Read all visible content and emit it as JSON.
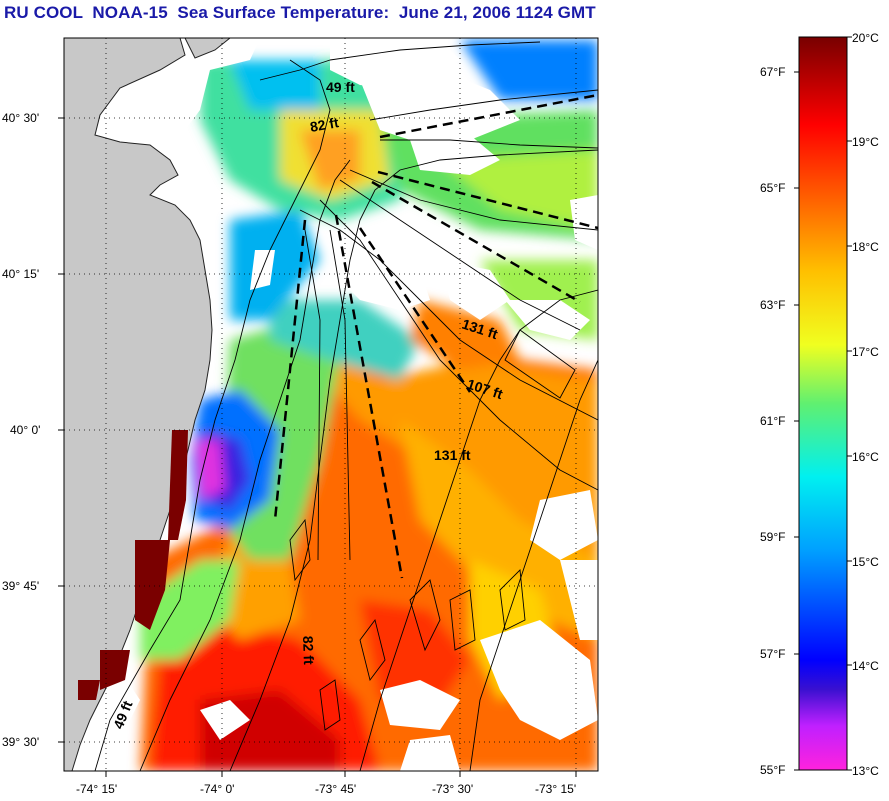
{
  "title": "RU COOL  NOAA-15  Sea Surface Temperature:  June 21, 2006 1124 GMT",
  "map": {
    "lat_labels": [
      "40° 30'",
      "40° 15'",
      "40° 0'",
      "39° 45'",
      "39° 30'"
    ],
    "lon_labels": [
      "-74° 15'",
      "-74° 0'",
      "-73° 45'",
      "-73° 30'",
      "-73° 15'"
    ],
    "depth_labels": [
      "49 ft",
      "82 ft",
      "131 ft",
      "107 ft",
      "131 ft",
      "82 ft",
      "49 ft"
    ],
    "colors": {
      "land": "#c8c8c8",
      "nodata": "#ffffff",
      "grid": "#000000"
    }
  },
  "colorbar": {
    "celsius_labels": [
      "20°C",
      "19°C",
      "18°C",
      "17°C",
      "16°C",
      "15°C",
      "14°C",
      "13°C"
    ],
    "fahrenheit_labels": [
      "67°F",
      "65°F",
      "63°F",
      "61°F",
      "59°F",
      "57°F",
      "55°F"
    ],
    "colors": [
      "#ff22dd",
      "#7a1aff",
      "#0000ff",
      "#0090ff",
      "#00e0ff",
      "#40f090",
      "#f0ff20",
      "#ffb000",
      "#ff5000",
      "#ff0000",
      "#d00000",
      "#7a0000"
    ]
  }
}
